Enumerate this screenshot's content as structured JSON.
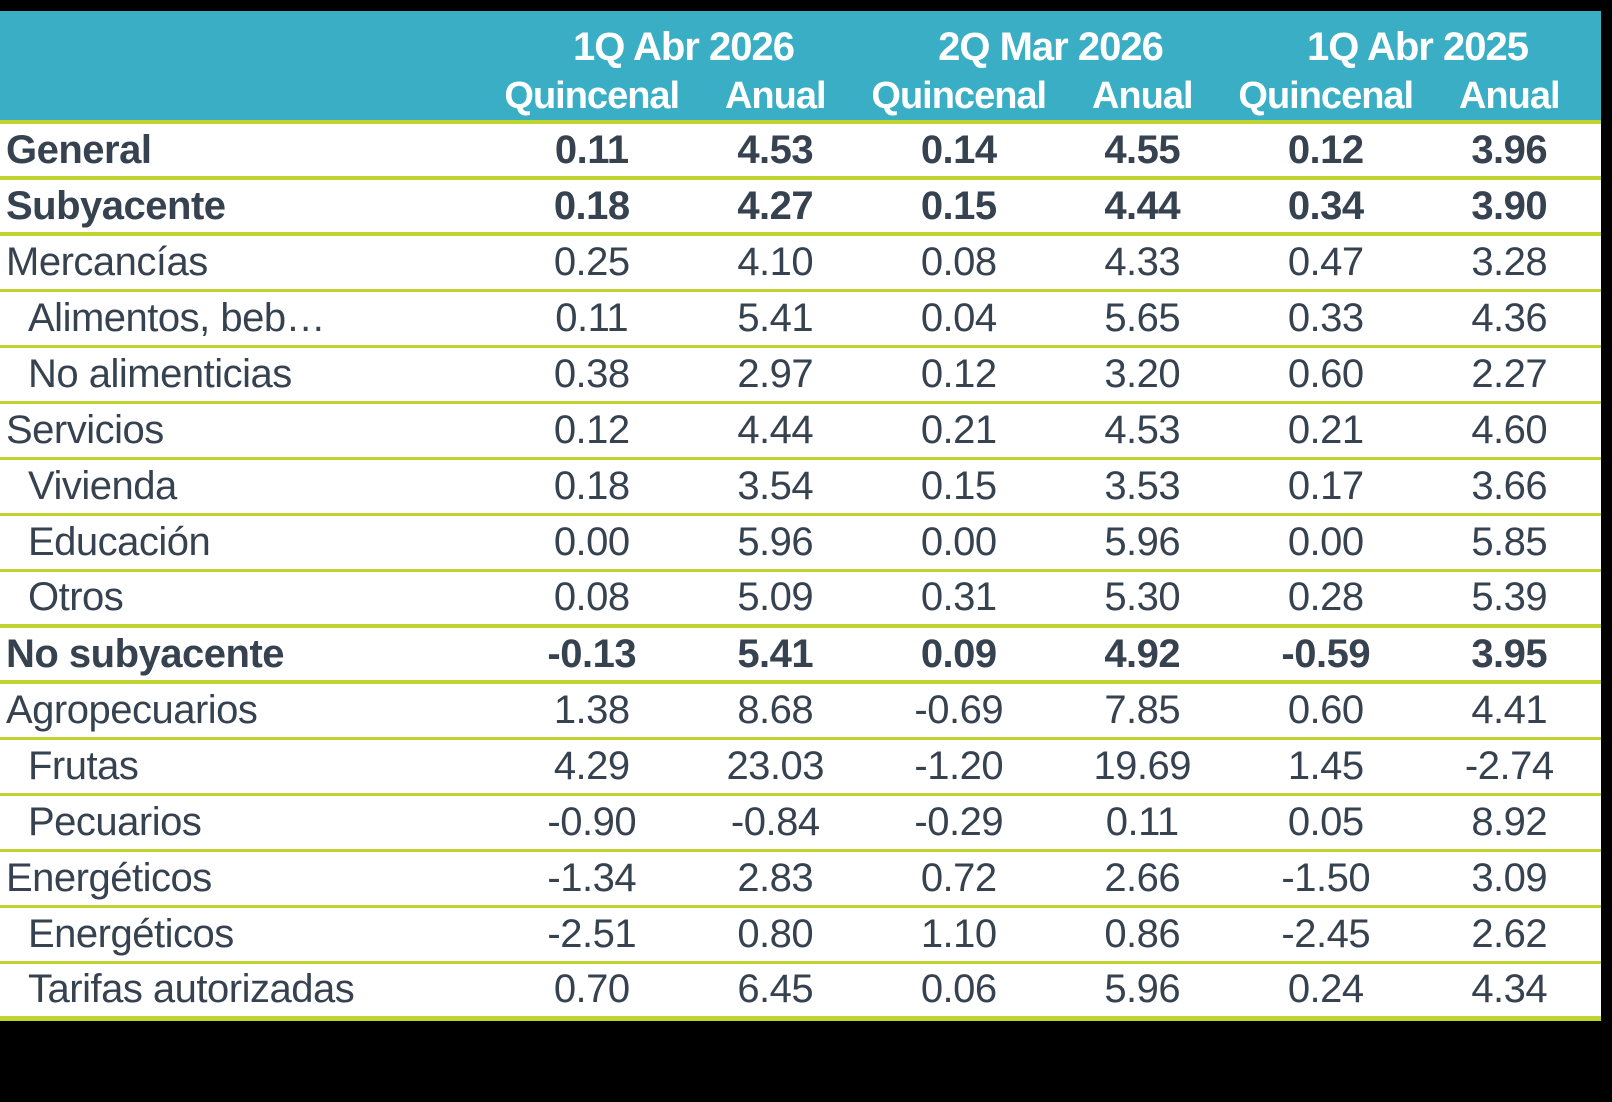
{
  "colors": {
    "header_bg": "#39AEC5",
    "separator": "#C1D32F",
    "text": "#36424F",
    "header_text": "#FFFFFF",
    "frame": "#000000",
    "sheet_bg": "#FFFFFF"
  },
  "chart_data": {
    "type": "table",
    "title": "",
    "column_groups": [
      "1Q Abr 2026",
      "2Q Mar 2026",
      "1Q Abr 2025"
    ],
    "sub_columns": [
      "Quincenal",
      "Anual",
      "Quincenal",
      "Anual",
      "Quincenal",
      "Anual"
    ],
    "value_format": "two_decimals",
    "rows": [
      {
        "label": "General",
        "bold": true,
        "indent": false,
        "thick": true,
        "values": [
          0.11,
          4.53,
          0.14,
          4.55,
          0.12,
          3.96
        ]
      },
      {
        "label": "Subyacente",
        "bold": true,
        "indent": false,
        "thick": true,
        "values": [
          0.18,
          4.27,
          0.15,
          4.44,
          0.34,
          3.9
        ]
      },
      {
        "label": "Mercancías",
        "bold": false,
        "indent": false,
        "thick": false,
        "values": [
          0.25,
          4.1,
          0.08,
          4.33,
          0.47,
          3.28
        ]
      },
      {
        "label": "Alimentos, beb…",
        "bold": false,
        "indent": true,
        "thick": false,
        "values": [
          0.11,
          5.41,
          0.04,
          5.65,
          0.33,
          4.36
        ]
      },
      {
        "label": "No alimenticias",
        "bold": false,
        "indent": true,
        "thick": false,
        "values": [
          0.38,
          2.97,
          0.12,
          3.2,
          0.6,
          2.27
        ]
      },
      {
        "label": "Servicios",
        "bold": false,
        "indent": false,
        "thick": false,
        "values": [
          0.12,
          4.44,
          0.21,
          4.53,
          0.21,
          4.6
        ]
      },
      {
        "label": "Vivienda",
        "bold": false,
        "indent": true,
        "thick": false,
        "values": [
          0.18,
          3.54,
          0.15,
          3.53,
          0.17,
          3.66
        ]
      },
      {
        "label": "Educación",
        "bold": false,
        "indent": true,
        "thick": false,
        "values": [
          0.0,
          5.96,
          0.0,
          5.96,
          0.0,
          5.85
        ]
      },
      {
        "label": "Otros",
        "bold": false,
        "indent": true,
        "thick": true,
        "values": [
          0.08,
          5.09,
          0.31,
          5.3,
          0.28,
          5.39
        ]
      },
      {
        "label": "No subyacente",
        "bold": true,
        "indent": false,
        "thick": true,
        "values": [
          -0.13,
          5.41,
          0.09,
          4.92,
          -0.59,
          3.95
        ]
      },
      {
        "label": "Agropecuarios",
        "bold": false,
        "indent": false,
        "thick": false,
        "values": [
          1.38,
          8.68,
          -0.69,
          7.85,
          0.6,
          4.41
        ]
      },
      {
        "label": "Frutas",
        "bold": false,
        "indent": true,
        "thick": false,
        "values": [
          4.29,
          23.03,
          -1.2,
          19.69,
          1.45,
          -2.74
        ]
      },
      {
        "label": "Pecuarios",
        "bold": false,
        "indent": true,
        "thick": false,
        "values": [
          -0.9,
          -0.84,
          -0.29,
          0.11,
          0.05,
          8.92
        ]
      },
      {
        "label": "Energéticos",
        "bold": false,
        "indent": false,
        "thick": false,
        "values": [
          -1.34,
          2.83,
          0.72,
          2.66,
          -1.5,
          3.09
        ]
      },
      {
        "label": "Energéticos",
        "bold": false,
        "indent": true,
        "thick": false,
        "values": [
          -2.51,
          0.8,
          1.1,
          0.86,
          -2.45,
          2.62
        ]
      },
      {
        "label": "Tarifas autorizadas",
        "bold": false,
        "indent": true,
        "thick": false,
        "values": [
          0.7,
          6.45,
          0.06,
          5.96,
          0.24,
          4.34
        ]
      }
    ]
  }
}
